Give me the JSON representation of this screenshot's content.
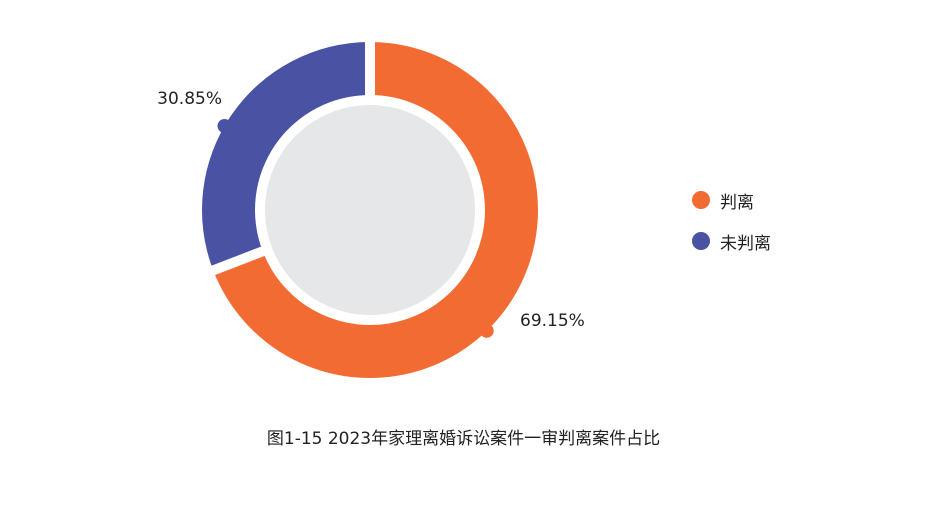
{
  "chart_data": {
    "type": "pie",
    "title": "图1-15  2023年家理离婚诉讼案件一审判离案件占比",
    "categories": [
      "判离",
      "未判离"
    ],
    "values": [
      69.15,
      30.85
    ],
    "value_labels": [
      "69.15%",
      "30.85%"
    ],
    "colors": [
      "#f26b32",
      "#4a52a3"
    ],
    "center_fill": "#e6e7e9",
    "legend_position": "right"
  }
}
